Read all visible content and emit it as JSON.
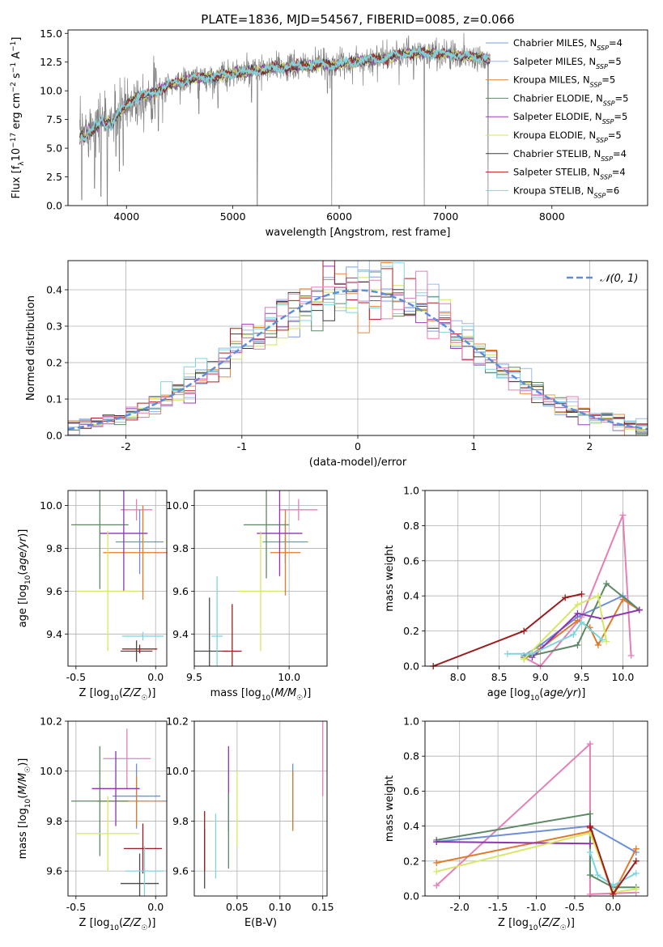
{
  "figure_title": "PLATE=1836, MJD=54567, FIBERID=0085, z=0.066",
  "colors": {
    "chabrier_miles": "#7b9fdf",
    "salpeter_miles": "#9ab7ef",
    "kroupa_miles": "#e58a3a",
    "chabrier_elodie": "#5c8a63",
    "salpeter_elodie": "#9a3fb5",
    "kroupa_elodie": "#d3e35b",
    "chabrier_stelib": "#3d3d3d",
    "salpeter_stelib": "#b01f1f",
    "kroupa_stelib": "#7fd6de",
    "gaussian": "#5b8fde",
    "pink": "#e57fb6",
    "blue": "#6b8fd9",
    "orange": "#e27a2b",
    "green": "#5d8a64",
    "purple": "#8e35b0",
    "yellow": "#d6e864",
    "dark": "#4a4a4a",
    "red": "#9b1c1c",
    "cyan": "#7dd6df",
    "grey": "#808080",
    "grid": "#b0b0b0"
  },
  "chart_data": [
    {
      "id": "spectrum",
      "type": "line",
      "title": "PLATE=1836, MJD=54567, FIBERID=0085, z=0.066",
      "xlabel": "wavelength [Angstrom, rest frame]",
      "ylabel": "Flux [f_λ 10^-17 erg cm^-2 s^-1 A^-1]",
      "xlim": [
        3450,
        8900
      ],
      "ylim": [
        0,
        15.3
      ],
      "xticks": [
        4000,
        5000,
        6000,
        7000,
        8000
      ],
      "yticks": [
        0.0,
        2.5,
        5.0,
        7.5,
        10.0,
        12.5,
        15.0
      ],
      "grid": false,
      "legend_position": "right",
      "legend": [
        "Chabrier MILES, N_SSP=4",
        "Salpeter MILES, N_SSP=5",
        "Kroupa MILES, N_SSP=5",
        "Chabrier ELODIE, N_SSP=5",
        "Salpeter ELODIE, N_SSP=5",
        "Kroupa ELODIE, N_SSP=5",
        "Chabrier STELIB, N_SSP=4",
        "Salpeter STELIB, N_SSP=4",
        "Kroupa STELIB, N_SSP=6"
      ],
      "continuum": [
        [
          3560,
          6.2
        ],
        [
          3650,
          6.8
        ],
        [
          3750,
          7.6
        ],
        [
          3850,
          7.5
        ],
        [
          3950,
          8.3
        ],
        [
          4100,
          9.5
        ],
        [
          4250,
          9.8
        ],
        [
          4400,
          10.5
        ],
        [
          4600,
          11.0
        ],
        [
          4800,
          11.2
        ],
        [
          5000,
          11.5
        ],
        [
          5200,
          11.7
        ],
        [
          5400,
          12.0
        ],
        [
          5600,
          12.1
        ],
        [
          5800,
          12.3
        ],
        [
          6000,
          12.3
        ],
        [
          6200,
          12.6
        ],
        [
          6400,
          12.8
        ],
        [
          6600,
          13.2
        ],
        [
          6800,
          13.3
        ],
        [
          7000,
          13.2
        ],
        [
          7200,
          13.0
        ],
        [
          7400,
          12.8
        ]
      ],
      "data_noise_amplitude": 0.9,
      "absorption_lines": [
        [
          3580,
          0.5
        ],
        [
          3700,
          1.5
        ],
        [
          3760,
          0.8
        ],
        [
          3820,
          0.0
        ],
        [
          3900,
          4.3
        ],
        [
          3933,
          3.0
        ],
        [
          3970,
          3.5
        ],
        [
          4100,
          7.0
        ],
        [
          4300,
          6.5
        ],
        [
          4340,
          7.2
        ],
        [
          4680,
          8.0
        ],
        [
          4861,
          8.5
        ],
        [
          5175,
          9.0
        ],
        [
          5230,
          0.0
        ],
        [
          5270,
          10.0
        ],
        [
          5890,
          9.8
        ],
        [
          5930,
          0.0
        ],
        [
          6563,
          10.5
        ],
        [
          6700,
          11.0
        ],
        [
          6800,
          0.0
        ],
        [
          7400,
          0.0
        ]
      ]
    },
    {
      "id": "residuals",
      "type": "line",
      "xlabel": "(data-model)/error",
      "ylabel": "Normed distribution",
      "xlim": [
        -2.5,
        2.5
      ],
      "ylim": [
        0,
        0.48
      ],
      "xticks": [
        -2,
        -1,
        0,
        1,
        2
      ],
      "yticks": [
        0.0,
        0.1,
        0.2,
        0.3,
        0.4
      ],
      "grid": true,
      "legend_position": "top-right",
      "gaussian_label": "𝒩(0, 1)",
      "bin_width": 0.1
    },
    {
      "id": "age_vs_Z",
      "type": "scatter",
      "xlabel": "Z [log10(Z/Z☉)]",
      "ylabel": "age [log10(age/yr)]",
      "xlim": [
        -0.55,
        0.07
      ],
      "ylim": [
        9.25,
        10.07
      ],
      "xticks": [
        -0.5,
        0.0
      ],
      "yticks": [
        9.4,
        9.6,
        9.8,
        10.0
      ],
      "grid": true,
      "points": [
        {
          "color": "pink",
          "x": -0.12,
          "xerr": 0.1,
          "y": 9.98,
          "yerr": 0.05
        },
        {
          "color": "blue",
          "x": -0.1,
          "xerr": 0.15,
          "y": 9.83,
          "yerr": 0.15
        },
        {
          "color": "orange",
          "x": -0.08,
          "xerr": 0.25,
          "y": 9.78,
          "yerr": 0.22
        },
        {
          "color": "green",
          "x": -0.35,
          "xerr": 0.18,
          "y": 9.91,
          "yerr": 0.3
        },
        {
          "color": "purple",
          "x": -0.2,
          "xerr": 0.15,
          "y": 9.87,
          "yerr": 0.27
        },
        {
          "color": "yellow",
          "x": -0.3,
          "xerr": 0.2,
          "y": 9.6,
          "yerr": 0.28
        },
        {
          "color": "dark",
          "x": -0.12,
          "xerr": 0.1,
          "y": 9.32,
          "yerr": 0.05
        },
        {
          "color": "red",
          "x": -0.1,
          "xerr": 0.11,
          "y": 9.33,
          "yerr": 0.02
        },
        {
          "color": "cyan",
          "x": -0.08,
          "xerr": 0.13,
          "y": 9.39,
          "yerr": 0.02
        }
      ]
    },
    {
      "id": "age_vs_mass",
      "type": "scatter",
      "xlabel": "mass [log10(M/M☉)]",
      "ylabel": "",
      "xlim": [
        9.5,
        10.2
      ],
      "ylim": [
        9.25,
        10.07
      ],
      "xticks": [
        9.5,
        10.0
      ],
      "yticks": [
        9.4,
        9.6,
        9.8,
        10.0
      ],
      "grid": true,
      "points": [
        {
          "color": "pink",
          "x": 10.05,
          "xerr": 0.1,
          "y": 9.98,
          "yerr": 0.05
        },
        {
          "color": "blue",
          "x": 9.98,
          "xerr": 0.12,
          "y": 9.83,
          "yerr": 0.1
        },
        {
          "color": "orange",
          "x": 9.98,
          "xerr": 0.08,
          "y": 9.78,
          "yerr": 0.2
        },
        {
          "color": "green",
          "x": 9.88,
          "xerr": 0.12,
          "y": 9.91,
          "yerr": 0.25
        },
        {
          "color": "purple",
          "x": 9.95,
          "xerr": 0.12,
          "y": 9.87,
          "yerr": 0.2
        },
        {
          "color": "yellow",
          "x": 9.85,
          "xerr": 0.12,
          "y": 9.6,
          "yerr": 0.28
        },
        {
          "color": "dark",
          "x": 9.58,
          "xerr": 0.1,
          "y": 9.32,
          "yerr": 0.25
        },
        {
          "color": "red",
          "x": 9.7,
          "xerr": 0.05,
          "y": 9.32,
          "yerr": 0.22
        },
        {
          "color": "cyan",
          "x": 9.62,
          "xerr": 0.03,
          "y": 9.39,
          "yerr": 0.28
        }
      ]
    },
    {
      "id": "weight_vs_age",
      "type": "line",
      "xlabel": "age [log10(age/yr)]",
      "ylabel": "mass weight",
      "xlim": [
        7.6,
        10.3
      ],
      "ylim": [
        0,
        1.0
      ],
      "xticks": [
        8.0,
        8.5,
        9.0,
        9.5,
        10.0
      ],
      "yticks": [
        0.0,
        0.2,
        0.4,
        0.6,
        0.8,
        1.0
      ],
      "grid": true,
      "series": [
        {
          "color": "pink",
          "x": [
            8.8,
            9.0,
            9.5,
            10.0,
            10.1
          ],
          "y": [
            0.05,
            0.0,
            0.28,
            0.86,
            0.06
          ]
        },
        {
          "color": "blue",
          "x": [
            8.8,
            9.0,
            9.45,
            10.0,
            10.2
          ],
          "y": [
            0.06,
            0.12,
            0.28,
            0.4,
            0.32
          ]
        },
        {
          "color": "orange",
          "x": [
            8.8,
            9.0,
            9.45,
            9.6,
            9.7,
            10.0,
            10.2
          ],
          "y": [
            0.04,
            0.1,
            0.26,
            0.22,
            0.12,
            0.38,
            0.32
          ]
        },
        {
          "color": "green",
          "x": [
            8.8,
            9.45,
            9.8,
            10.2
          ],
          "y": [
            0.05,
            0.12,
            0.47,
            0.32
          ]
        },
        {
          "color": "purple",
          "x": [
            8.9,
            9.45,
            9.75,
            10.2
          ],
          "y": [
            0.05,
            0.3,
            0.27,
            0.32
          ]
        },
        {
          "color": "yellow",
          "x": [
            8.8,
            9.45,
            9.7,
            9.8
          ],
          "y": [
            0.04,
            0.35,
            0.4,
            0.14
          ]
        },
        {
          "color": "cyan",
          "x": [
            8.6,
            8.9,
            9.4,
            9.5,
            9.75
          ],
          "y": [
            0.07,
            0.07,
            0.18,
            0.25,
            0.15
          ]
        },
        {
          "color": "red",
          "x": [
            7.7,
            8.8,
            9.3,
            9.5
          ],
          "y": [
            0.0,
            0.2,
            0.39,
            0.41
          ]
        }
      ]
    },
    {
      "id": "mass_vs_Z",
      "type": "scatter",
      "xlabel": "Z [log10(Z/Z☉)]",
      "ylabel": "mass [log10(M/M☉)]",
      "xlim": [
        -0.55,
        0.07
      ],
      "ylim": [
        9.5,
        10.2
      ],
      "xticks": [
        -0.5,
        0.0
      ],
      "yticks": [
        9.6,
        9.8,
        10.0,
        10.2
      ],
      "grid": true,
      "points": [
        {
          "color": "pink",
          "x": -0.18,
          "xerr": 0.15,
          "y": 10.05,
          "yerr": 0.12
        },
        {
          "color": "blue",
          "x": -0.12,
          "xerr": 0.15,
          "y": 9.9,
          "yerr": 0.13
        },
        {
          "color": "orange",
          "x": -0.12,
          "xerr": 0.25,
          "y": 9.88,
          "yerr": 0.1
        },
        {
          "color": "green",
          "x": -0.35,
          "xerr": 0.18,
          "y": 9.88,
          "yerr": 0.22
        },
        {
          "color": "purple",
          "x": -0.25,
          "xerr": 0.15,
          "y": 9.93,
          "yerr": 0.15
        },
        {
          "color": "yellow",
          "x": -0.3,
          "xerr": 0.2,
          "y": 9.75,
          "yerr": 0.15
        },
        {
          "color": "dark",
          "x": -0.1,
          "xerr": 0.12,
          "y": 9.55,
          "yerr": 0.12
        },
        {
          "color": "red",
          "x": -0.08,
          "xerr": 0.12,
          "y": 9.69,
          "yerr": 0.1
        },
        {
          "color": "cyan",
          "x": -0.07,
          "xerr": 0.12,
          "y": 9.6,
          "yerr": 0.1
        }
      ]
    },
    {
      "id": "mass_vs_ebv",
      "type": "scatter",
      "xlabel": "E(B-V)",
      "ylabel": "",
      "xlim": [
        0.0,
        0.155
      ],
      "ylim": [
        9.5,
        10.2
      ],
      "xticks": [
        0.05,
        0.1,
        0.15
      ],
      "yticks": [
        9.6,
        9.8,
        10.0,
        10.2
      ],
      "grid": true,
      "points": [
        {
          "color": "pink",
          "x": 0.15,
          "y": 10.05,
          "yerr": 0.15
        },
        {
          "color": "blue",
          "x": 0.115,
          "y": 9.9,
          "yerr": 0.13
        },
        {
          "color": "orange",
          "x": 0.115,
          "y": 9.88,
          "yerr": 0.12
        },
        {
          "color": "purple",
          "x": 0.04,
          "y": 9.93,
          "yerr": 0.17
        },
        {
          "color": "yellow",
          "x": 0.05,
          "y": 9.85,
          "yerr": 0.15
        },
        {
          "color": "green",
          "x": 0.04,
          "y": 9.76,
          "yerr": 0.15
        },
        {
          "color": "cyan",
          "x": 0.025,
          "y": 9.7,
          "yerr": 0.13
        },
        {
          "color": "dark",
          "x": 0.012,
          "y": 9.65,
          "yerr": 0.12
        },
        {
          "color": "red",
          "x": 0.012,
          "y": 9.72,
          "yerr": 0.12
        }
      ]
    },
    {
      "id": "weight_vs_Z",
      "type": "line",
      "xlabel": "Z [log10(Z/Z☉)]",
      "ylabel": "mass weight",
      "xlim": [
        -2.45,
        0.45
      ],
      "ylim": [
        0,
        1.0
      ],
      "xticks": [
        -2.0,
        -1.5,
        -1.0,
        -0.5,
        0.0
      ],
      "yticks": [
        0.0,
        0.2,
        0.4,
        0.6,
        0.8,
        1.0
      ],
      "grid": true,
      "series": [
        {
          "color": "pink",
          "x": [
            -2.3,
            -0.3,
            -0.3,
            0.3
          ],
          "y": [
            0.06,
            0.87,
            0.01,
            0.02
          ]
        },
        {
          "color": "blue",
          "x": [
            -2.3,
            -0.3,
            0.3
          ],
          "y": [
            0.31,
            0.4,
            0.25
          ]
        },
        {
          "color": "orange",
          "x": [
            -2.3,
            -0.3,
            0.0,
            0.3
          ],
          "y": [
            0.19,
            0.37,
            0.01,
            0.27
          ]
        },
        {
          "color": "green",
          "x": [
            -2.3,
            -0.3,
            -0.3,
            0.0,
            0.3
          ],
          "y": [
            0.32,
            0.47,
            0.12,
            0.05,
            0.05
          ]
        },
        {
          "color": "purple",
          "x": [
            -2.3,
            -0.3
          ],
          "y": [
            0.31,
            0.3
          ]
        },
        {
          "color": "yellow",
          "x": [
            -2.3,
            -0.3,
            0.0,
            0.3
          ],
          "y": [
            0.14,
            0.36,
            0.02,
            0.04
          ]
        },
        {
          "color": "cyan",
          "x": [
            -0.3,
            -0.2,
            0.0,
            0.3
          ],
          "y": [
            0.25,
            0.12,
            0.06,
            0.13
          ]
        },
        {
          "color": "red",
          "x": [
            -0.3,
            -0.3,
            0.0,
            0.3
          ],
          "y": [
            0.39,
            0.4,
            0.01,
            0.2
          ]
        }
      ]
    }
  ]
}
